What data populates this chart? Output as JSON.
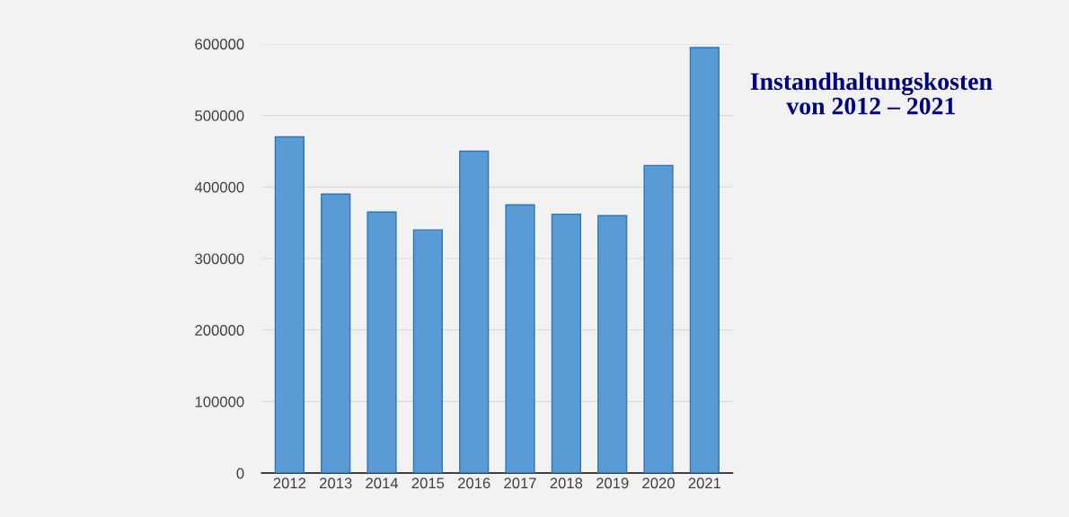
{
  "chart_data": {
    "type": "bar",
    "title": "Instandhaltungskosten\nvon 2012 – 2021",
    "categories": [
      "2012",
      "2013",
      "2014",
      "2015",
      "2016",
      "2017",
      "2018",
      "2019",
      "2020",
      "2021"
    ],
    "values": [
      470000,
      390000,
      365000,
      340000,
      450000,
      375000,
      362000,
      360000,
      430000,
      595000
    ],
    "color": "#5b9bd5",
    "ylim": [
      0,
      600000
    ],
    "yticks": [
      0,
      100000,
      200000,
      300000,
      400000,
      500000,
      600000
    ],
    "grid": "y"
  }
}
